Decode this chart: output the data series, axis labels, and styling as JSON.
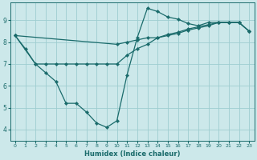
{
  "background_color": "#cce8ea",
  "grid_color": "#9ecdd0",
  "line_color": "#1a6b6b",
  "xlabel": "Humidex (Indice chaleur)",
  "xlim": [
    -0.5,
    23.5
  ],
  "ylim": [
    3.5,
    9.8
  ],
  "xticks": [
    0,
    1,
    2,
    3,
    4,
    5,
    6,
    7,
    8,
    9,
    10,
    11,
    12,
    13,
    14,
    15,
    16,
    17,
    18,
    19,
    20,
    21,
    22,
    23
  ],
  "yticks": [
    4,
    5,
    6,
    7,
    8,
    9
  ],
  "line1_x": [
    0,
    1,
    2,
    3,
    4,
    5,
    6,
    7,
    8,
    9,
    10,
    11,
    12,
    13,
    14,
    15,
    16,
    17,
    18,
    19,
    20,
    21,
    22,
    23
  ],
  "line1_y": [
    8.3,
    7.7,
    7.0,
    6.6,
    6.2,
    5.2,
    5.2,
    4.8,
    4.3,
    4.1,
    4.4,
    6.5,
    8.2,
    9.55,
    9.4,
    9.15,
    9.05,
    8.85,
    8.75,
    8.9,
    8.9,
    8.9,
    8.9,
    8.5
  ],
  "line2_x": [
    0,
    2,
    3,
    4,
    5,
    6,
    7,
    8,
    9,
    10,
    11,
    12,
    13,
    14,
    15,
    16,
    17,
    18,
    19,
    20,
    21,
    22,
    23
  ],
  "line2_y": [
    8.3,
    7.0,
    7.0,
    7.0,
    7.0,
    7.0,
    7.0,
    7.0,
    7.0,
    7.0,
    7.4,
    7.7,
    7.9,
    8.2,
    8.35,
    8.45,
    8.6,
    8.7,
    8.8,
    8.9,
    8.9,
    8.9,
    8.5
  ],
  "line3_x": [
    0,
    10,
    11,
    12,
    13,
    14,
    15,
    16,
    17,
    18,
    19,
    20,
    21,
    22,
    23
  ],
  "line3_y": [
    8.3,
    7.9,
    8.0,
    8.1,
    8.2,
    8.2,
    8.3,
    8.4,
    8.55,
    8.65,
    8.75,
    8.9,
    8.9,
    8.9,
    8.5
  ]
}
